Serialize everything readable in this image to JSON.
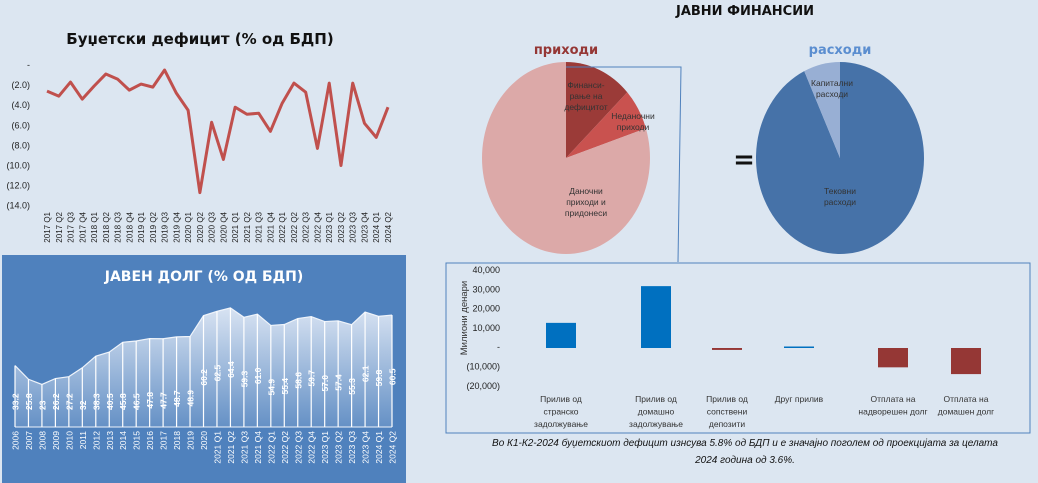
{
  "chart_data": [
    {
      "type": "line",
      "title": "Буџетски дефицит (% од БДП)",
      "color": "#c0504d",
      "ylim": [
        -14,
        0
      ],
      "yticks": [
        "-",
        "(2.0)",
        "(4.0)",
        "(6.0)",
        "(8.0)",
        "(10.0)",
        "(12.0)",
        "(14.0)"
      ],
      "categories": [
        "2017 Q1",
        "2017 Q2",
        "2017 Q3",
        "2017 Q4",
        "2018 Q1",
        "2018 Q2",
        "2018 Q3",
        "2018 Q4",
        "2019 Q1",
        "2019 Q2",
        "2019 Q3",
        "2019 Q4",
        "2020 Q1",
        "2020 Q2",
        "2020 Q3",
        "2020 Q4",
        "2021 Q1",
        "2021 Q2",
        "2021 Q3",
        "2021 Q4",
        "2022 Q1",
        "2022 Q2",
        "2022 Q3",
        "2022 Q4",
        "2023 Q1",
        "2023 Q2",
        "2023 Q3",
        "2023 Q4",
        "2024 Q1",
        "2024 Q2"
      ],
      "values": [
        -2.7,
        -3.2,
        -1.8,
        -3.5,
        -2.2,
        -1.0,
        -1.5,
        -2.6,
        -2.0,
        -2.3,
        -0.6,
        -2.9,
        -4.6,
        -12.8,
        -5.8,
        -9.5,
        -4.3,
        -5.0,
        -4.9,
        -6.7,
        -3.9,
        -1.9,
        -2.8,
        -8.4,
        -1.9,
        -10.1,
        -1.9,
        -5.9,
        -7.3,
        -4.3
      ]
    },
    {
      "type": "area",
      "title": "ЈАВЕН ДОЛГ (% ОД БДП)",
      "categories": [
        "2006",
        "2007",
        "2008",
        "2009",
        "2010",
        "2011",
        "2012",
        "2013",
        "2014",
        "2015",
        "2016",
        "2017",
        "2018",
        "2019",
        "2020",
        "2021 Q1",
        "2021 Q2",
        "2021 Q3",
        "2021 Q4",
        "2022 Q1",
        "2022 Q2",
        "2022 Q3",
        "2022 Q4",
        "2023 Q1",
        "2023 Q2",
        "2023 Q3",
        "2023 Q4",
        "2024 Q1",
        "2024 Q2"
      ],
      "values": [
        33.2,
        25.8,
        23,
        26.2,
        27.2,
        32,
        38.3,
        40.5,
        45.8,
        46.5,
        47.8,
        47.7,
        48.7,
        48.9,
        60.2,
        62.5,
        64.4,
        59.3,
        61.0,
        54.9,
        55.4,
        58.6,
        59.7,
        57.0,
        57.4,
        55.3,
        62.1,
        59.8,
        60.5
      ],
      "labels": [
        "33.2",
        "25.8",
        "23",
        "26.2",
        "27.2",
        "32",
        "38.3",
        "40.5",
        "45.8",
        "46.5",
        "47.8",
        "47.7",
        "48.7",
        "48.9",
        "60.2",
        "62.5",
        "64.4",
        "59.3",
        "61.0",
        "54.9",
        "55.4",
        "58.6",
        "59.7",
        "57.0",
        "57.4",
        "55.3",
        "62.1",
        "59.8",
        "60.5"
      ]
    },
    {
      "type": "pie",
      "title": "приходи",
      "title_color": "#953735",
      "slices": [
        {
          "label": "Финанси-\nрање на\nдефицитот",
          "value": 13,
          "color": "#9b3b38"
        },
        {
          "label": "Неданочни\nприходи",
          "value": 7,
          "color": "#c9524f"
        },
        {
          "label": "Даночни\nприходи и\nпридонеси",
          "value": 80,
          "color": "#dca9a8"
        }
      ]
    },
    {
      "type": "pie",
      "title": "расходи",
      "title_color": "#5b8ed0",
      "slices": [
        {
          "label": "Тековни\nрасходи",
          "value": 93,
          "color": "#4672a8"
        },
        {
          "label": "Капитални\nрасходи",
          "value": 7,
          "color": "#98afd4"
        }
      ]
    },
    {
      "type": "bar",
      "ylabel": "Милиони денари",
      "ylim": [
        -20000,
        40000
      ],
      "yticks": [
        "40,000",
        "30,000",
        "20,000",
        "10,000",
        "-",
        "(10,000)",
        "(20,000)"
      ],
      "categories": [
        "Прилив од\nстранско\nзадолжување",
        "Прилив од\nдомашно\nзадолжување",
        "Прилив од\nсопствени\nдепозити",
        "Друг прилив",
        "Отплата на\nнадворешен долг",
        "Отплата на\nдомашен долг"
      ],
      "values": [
        13000,
        32000,
        -1000,
        300,
        -10000,
        -13500
      ],
      "positive_color": "#0070c0",
      "negative_color": "#953735"
    }
  ],
  "header": {
    "title": "ЈАВНИ ФИНАНСИИ",
    "equals": "="
  },
  "caption": {
    "line1": "Во К1-К2-2024 буџетскиот  дефицит  изнсува  5.8% од БДП и е значајно  поголем од проекцијата  за целата",
    "line2": "2024 година  од 3.6%."
  }
}
